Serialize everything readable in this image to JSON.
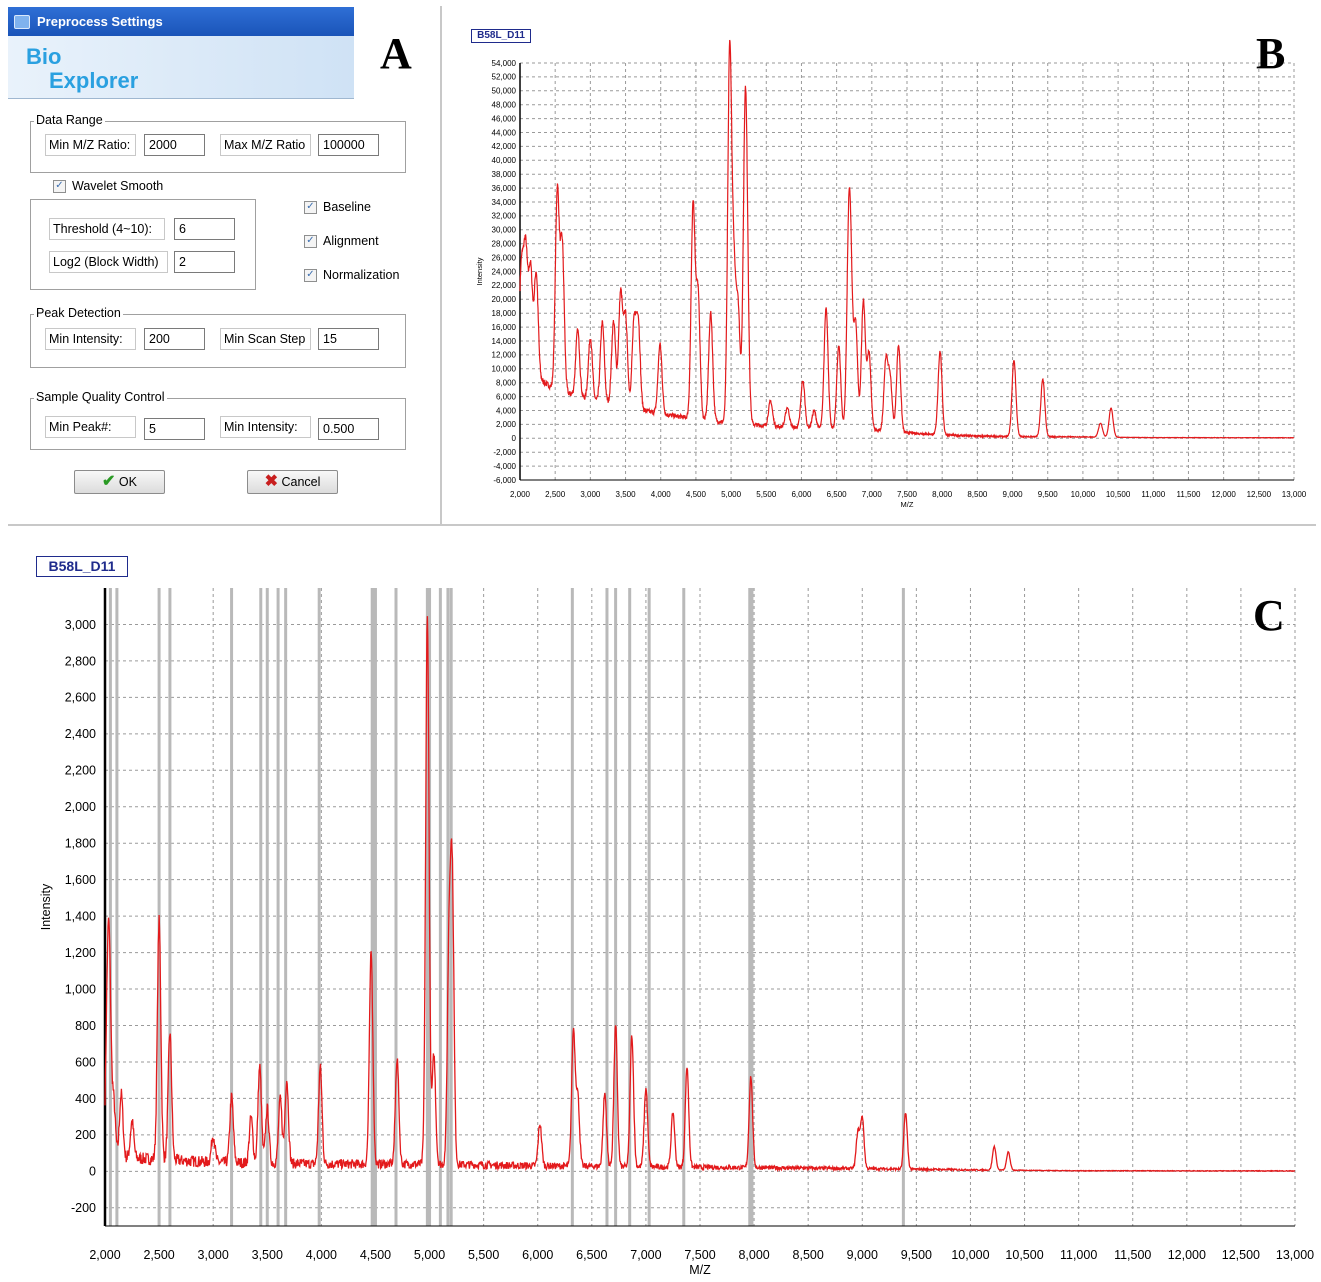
{
  "panel_labels": {
    "a": "A",
    "b": "B",
    "c": "C"
  },
  "dialog": {
    "title": "Preprocess Settings",
    "logo_line1": "Bio",
    "logo_line2": "Explorer",
    "data_range": {
      "legend": "Data Range",
      "min_label": "Min M/Z Ratio:",
      "min_value": "2000",
      "max_label": "Max M/Z Ratio",
      "max_value": "100000"
    },
    "wavelet": {
      "label": "Wavelet Smooth",
      "checked": true,
      "threshold_label": "Threshold (4~10):",
      "threshold_value": "6",
      "log2_label": "Log2 (Block Width)",
      "log2_value": "2"
    },
    "options": [
      {
        "label": "Baseline",
        "checked": true
      },
      {
        "label": "Alignment",
        "checked": true
      },
      {
        "label": "Normalization",
        "checked": true
      }
    ],
    "peak_detection": {
      "legend": "Peak Detection",
      "min_intensity_label": "Min Intensity:",
      "min_intensity_value": "200",
      "min_scan_label": "Min Scan Step",
      "min_scan_value": "15"
    },
    "quality": {
      "legend": "Sample Quality Control",
      "min_peak_label": "Min Peak#:",
      "min_peak_value": "5",
      "min_intensity_label": "Min Intensity:",
      "min_intensity_value": "0.500"
    },
    "ok_label": "OK",
    "cancel_label": "Cancel"
  },
  "chart_data": [
    {
      "type": "line",
      "tag": "B58L_D11",
      "xlabel": "M/Z",
      "ylabel": "Intensity",
      "xlim": [
        2000,
        13000
      ],
      "ylim": [
        -6000,
        54000
      ],
      "x_ticks": [
        "2,000",
        "2,500",
        "3,000",
        "3,500",
        "4,000",
        "4,500",
        "5,000",
        "5,500",
        "6,000",
        "6,500",
        "7,000",
        "7,500",
        "8,000",
        "8,500",
        "9,000",
        "9,500",
        "10,000",
        "10,500",
        "11,000",
        "11,500",
        "12,000",
        "12,500",
        "13,000"
      ],
      "y_ticks": [
        "54,000",
        "52,000",
        "50,000",
        "48,000",
        "46,000",
        "44,000",
        "42,000",
        "40,000",
        "38,000",
        "36,000",
        "34,000",
        "32,000",
        "30,000",
        "28,000",
        "26,000",
        "24,000",
        "22,000",
        "20,000",
        "18,000",
        "16,000",
        "14,000",
        "12,000",
        "10,000",
        "8,000",
        "6,000",
        "4,000",
        "2,000",
        "0",
        "-2,000",
        "-4,000",
        "-6,000"
      ],
      "color": "#e31a1c",
      "baseline": [
        [
          2000,
          10500
        ],
        [
          2200,
          9000
        ],
        [
          2500,
          7000
        ],
        [
          3000,
          5500
        ],
        [
          3500,
          4500
        ],
        [
          4000,
          3500
        ],
        [
          4500,
          2800
        ],
        [
          5000,
          2200
        ],
        [
          5500,
          1800
        ],
        [
          6000,
          1500
        ],
        [
          7000,
          1200
        ],
        [
          7500,
          800
        ],
        [
          8000,
          500
        ],
        [
          8500,
          300
        ],
        [
          9000,
          250
        ],
        [
          10000,
          200
        ],
        [
          11000,
          100
        ],
        [
          13000,
          80
        ]
      ],
      "peaks": [
        [
          2020,
          14000
        ],
        [
          2080,
          17000
        ],
        [
          2150,
          15000
        ],
        [
          2230,
          15000
        ],
        [
          2530,
          28500
        ],
        [
          2600,
          21000
        ],
        [
          2820,
          9500
        ],
        [
          3000,
          9000
        ],
        [
          3170,
          11500
        ],
        [
          3330,
          12000
        ],
        [
          3430,
          16200
        ],
        [
          3500,
          13000
        ],
        [
          3620,
          12000
        ],
        [
          3680,
          12500
        ],
        [
          3990,
          10000
        ],
        [
          4460,
          30500
        ],
        [
          4530,
          18000
        ],
        [
          4710,
          15500
        ],
        [
          4980,
          53000
        ],
        [
          5040,
          20000
        ],
        [
          5100,
          16000
        ],
        [
          5200,
          41200
        ],
        [
          5230,
          12000
        ],
        [
          5560,
          3600
        ],
        [
          5800,
          2800
        ],
        [
          6020,
          6800
        ],
        [
          6180,
          2500
        ],
        [
          6350,
          17500
        ],
        [
          6530,
          12000
        ],
        [
          6670,
          22500
        ],
        [
          6700,
          17500
        ],
        [
          6770,
          15000
        ],
        [
          6880,
          18500
        ],
        [
          6960,
          11000
        ],
        [
          7200,
          10000
        ],
        [
          7260,
          7500
        ],
        [
          7380,
          12500
        ],
        [
          7970,
          12000
        ],
        [
          9020,
          11000
        ],
        [
          9430,
          8300
        ],
        [
          10250,
          2000
        ],
        [
          10400,
          4200
        ]
      ],
      "width": 28
    },
    {
      "type": "line",
      "tag": "B58L_D11",
      "xlabel": "M/Z",
      "ylabel": "Intensity",
      "xlim": [
        2000,
        13000
      ],
      "ylim": [
        -300,
        3200
      ],
      "x_ticks": [
        "2,000",
        "2,500",
        "3,000",
        "3,500",
        "4,000",
        "4,500",
        "5,000",
        "5,500",
        "6,000",
        "6,500",
        "7,000",
        "7,500",
        "8,000",
        "8,500",
        "9,000",
        "9,500",
        "10,000",
        "10,500",
        "11,000",
        "11,500",
        "12,000",
        "12,500",
        "13,000"
      ],
      "y_ticks": [
        "3,000",
        "2,800",
        "2,600",
        "2,400",
        "2,200",
        "2,000",
        "1,800",
        "1,600",
        "1,400",
        "1,200",
        "1,000",
        "800",
        "600",
        "400",
        "200",
        "0",
        "-200"
      ],
      "color": "#e31a1c",
      "baseline": [
        [
          2000,
          80
        ],
        [
          3000,
          50
        ],
        [
          4000,
          40
        ],
        [
          5000,
          40
        ],
        [
          6000,
          30
        ],
        [
          7000,
          25
        ],
        [
          8000,
          20
        ],
        [
          9000,
          15
        ],
        [
          10000,
          8
        ],
        [
          11000,
          3
        ],
        [
          13000,
          2
        ]
      ],
      "peaks": [
        [
          2020,
          600
        ],
        [
          2040,
          950
        ],
        [
          2080,
          300
        ],
        [
          2150,
          350
        ],
        [
          2250,
          200
        ],
        [
          2500,
          1310
        ],
        [
          2600,
          700
        ],
        [
          3000,
          150
        ],
        [
          3170,
          360
        ],
        [
          3350,
          250
        ],
        [
          3430,
          530
        ],
        [
          3500,
          300
        ],
        [
          3620,
          350
        ],
        [
          3680,
          460
        ],
        [
          3990,
          530
        ],
        [
          4460,
          1160
        ],
        [
          4700,
          580
        ],
        [
          4980,
          3000
        ],
        [
          5040,
          600
        ],
        [
          5180,
          1150
        ],
        [
          5210,
          1510
        ],
        [
          6020,
          230
        ],
        [
          6330,
          740
        ],
        [
          6370,
          380
        ],
        [
          6620,
          400
        ],
        [
          6720,
          770
        ],
        [
          6870,
          720
        ],
        [
          7000,
          430
        ],
        [
          7250,
          300
        ],
        [
          7380,
          550
        ],
        [
          7970,
          500
        ],
        [
          8960,
          200
        ],
        [
          9000,
          280
        ],
        [
          9400,
          310
        ],
        [
          10220,
          130
        ],
        [
          10350,
          100
        ]
      ],
      "width": 16,
      "peak_markers": [
        2050,
        2110,
        2500,
        2600,
        3170,
        3440,
        3500,
        3600,
        3670,
        3980,
        4470,
        4480,
        4500,
        4690,
        4980,
        5000,
        5100,
        5170,
        5200,
        6320,
        6640,
        6720,
        6850,
        7030,
        7350,
        7960,
        7980,
        9380
      ]
    }
  ]
}
